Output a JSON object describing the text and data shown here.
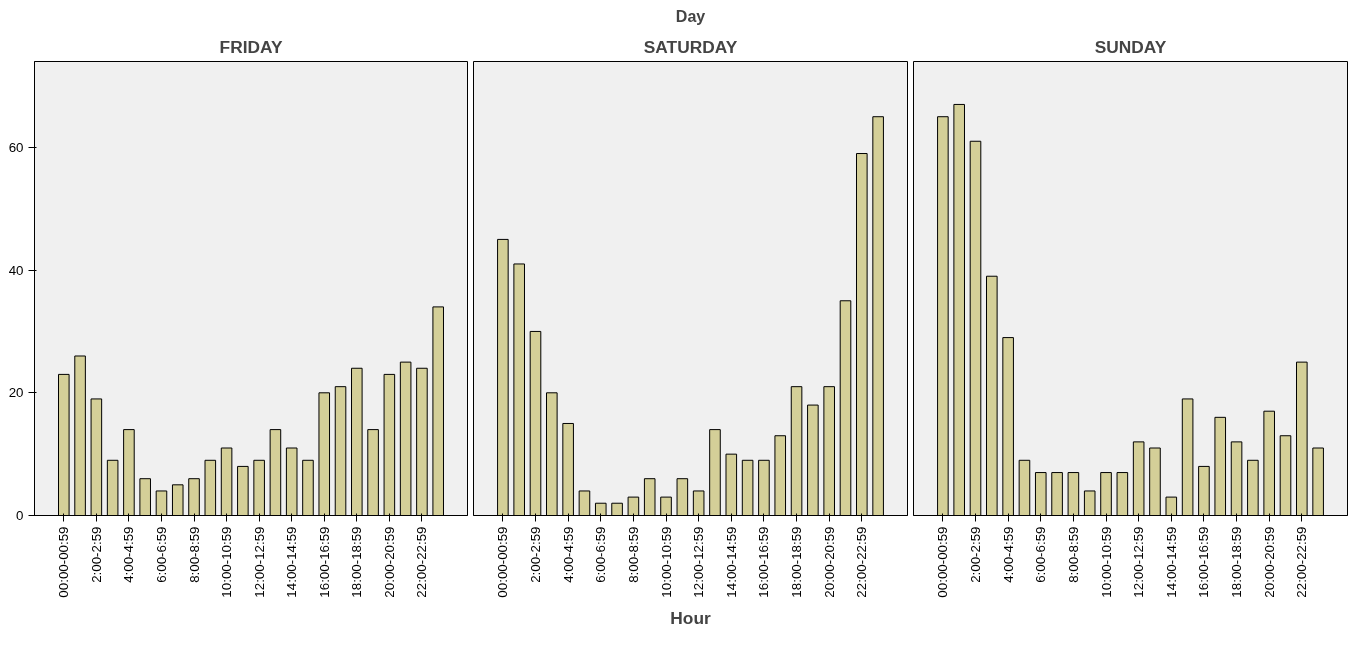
{
  "chart_data": [
    {
      "type": "bar",
      "title": "FRIDAY",
      "categories": [
        "00:00-00:59",
        null,
        "2:00-2:59",
        null,
        "4:00-4:59",
        null,
        "6:00-6:59",
        null,
        "8:00-8:59",
        null,
        "10:00-10:59",
        null,
        "12:00-12:59",
        null,
        "14:00-14:59",
        null,
        "16:00-16:59",
        null,
        "18:00-18:59",
        null,
        "20:00-20:59",
        null,
        "22:00-22:59",
        null
      ],
      "values": [
        23,
        26,
        19,
        9,
        14,
        6,
        4,
        5,
        6,
        9,
        11,
        8,
        9,
        14,
        11,
        9,
        20,
        21,
        24,
        14,
        23,
        25,
        24,
        34
      ],
      "color": "#d4cf98",
      "ylim": [
        0,
        74
      ],
      "yticks": [
        0,
        20,
        40,
        60
      ]
    },
    {
      "type": "bar",
      "title": "SATURDAY",
      "subtitle": "Day",
      "xlabel": "Hour",
      "categories": [
        "00:00-00:59",
        null,
        "2:00-2:59",
        null,
        "4:00-4:59",
        null,
        "6:00-6:59",
        null,
        "8:00-8:59",
        null,
        "10:00-10:59",
        null,
        "12:00-12:59",
        null,
        "14:00-14:59",
        null,
        "16:00-16:59",
        null,
        "18:00-18:59",
        null,
        "20:00-20:59",
        null,
        "22:00-22:59",
        null
      ],
      "values": [
        45,
        41,
        30,
        20,
        15,
        4,
        2,
        2,
        3,
        6,
        3,
        6,
        4,
        14,
        10,
        9,
        9,
        13,
        21,
        18,
        21,
        35,
        59,
        65
      ],
      "color": "#d4cf98",
      "ylim": [
        0,
        74
      ],
      "yticks": [
        0,
        20,
        40,
        60
      ],
      "tick_labels": "x"
    },
    {
      "type": "bar",
      "title": "SUNDAY",
      "categories": [
        "00:00-00:59",
        null,
        "2:00-2:59",
        null,
        "4:00-4:59",
        null,
        "6:00-6:59",
        null,
        "8:00-8:59",
        null,
        "10:00-10:59",
        null,
        "12:00-12:59",
        null,
        "14:00-14:59",
        null,
        "16:00-16:59",
        null,
        "18:00-18:59",
        null,
        "20:00-20:59",
        null,
        "22:00-22:59",
        null
      ],
      "values": [
        65,
        67,
        61,
        39,
        29,
        9,
        7,
        7,
        7,
        4,
        7,
        7,
        12,
        11,
        3,
        19,
        8,
        16,
        12,
        9,
        17,
        13,
        25,
        11
      ],
      "color": "#d4cf98",
      "ylim": [
        0,
        74
      ],
      "yticks": [
        0,
        20,
        40,
        60
      ],
      "tick_labels": "x"
    }
  ]
}
